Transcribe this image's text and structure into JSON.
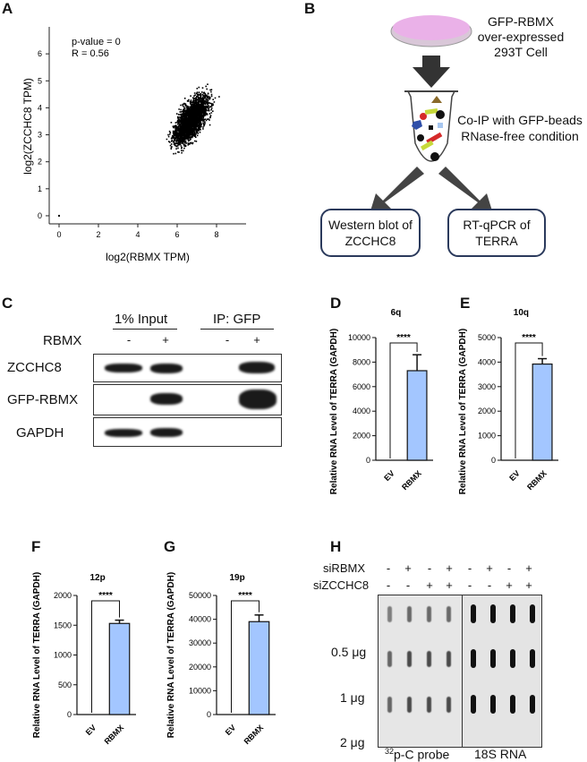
{
  "panel_labels": {
    "a": "A",
    "b": "B",
    "c": "C",
    "d": "D",
    "e": "E",
    "f": "F",
    "g": "G",
    "h": "H"
  },
  "panelA": {
    "stats": [
      "p-value = 0",
      "R = 0.56"
    ],
    "xlabel": "log2(RBMX TPM)",
    "ylabel": "log2(ZCCHC8 TPM)",
    "xticks": [
      "0",
      "2",
      "4",
      "6",
      "8"
    ],
    "yticks": [
      "0",
      "1",
      "2",
      "3",
      "4",
      "5",
      "6"
    ]
  },
  "panelB": {
    "cell_text": "GFP-RBMX\nover-expressed\n293T Cell",
    "coip_text": "Co-IP with GFP-beads\nRNase-free condition",
    "box_left": "Western blot of\nZCCHC8",
    "box_right": "RT-qPCR of\nTERRA",
    "dish_color": "#eab1e8"
  },
  "panelC": {
    "group1": "1% Input",
    "group2": "IP: GFP",
    "treatment_label": "RBMX",
    "signs": [
      "-",
      "+",
      "-",
      "+"
    ],
    "rows": [
      "ZCCHC8",
      "GFP-RBMX",
      "GAPDH"
    ]
  },
  "bar_color": "#a3c6ff",
  "chart_data": [
    {
      "id": "D",
      "type": "bar",
      "title": "6q",
      "ylabel": "Relative RNA Level of TERRA (GAPDH)",
      "categories": [
        "EV",
        "RBMX"
      ],
      "values": [
        0,
        7300
      ],
      "errors": [
        0,
        1300
      ],
      "ylim": [
        0,
        10000
      ],
      "yticks": [
        "0",
        "2000",
        "4000",
        "6000",
        "8000",
        "10000"
      ],
      "significance": "****"
    },
    {
      "id": "E",
      "type": "bar",
      "title": "10q",
      "ylabel": "Relative RNA Level of TERRA (GAPDH)",
      "categories": [
        "EV",
        "RBMX"
      ],
      "values": [
        0,
        3920
      ],
      "errors": [
        0,
        220
      ],
      "ylim": [
        0,
        5000
      ],
      "yticks": [
        "0",
        "1000",
        "2000",
        "3000",
        "4000",
        "5000"
      ],
      "significance": "****"
    },
    {
      "id": "F",
      "type": "bar",
      "title": "12p",
      "ylabel": "Relative RNA Level of TERRA (GAPDH)",
      "categories": [
        "EV",
        "RBMX"
      ],
      "values": [
        0,
        1530
      ],
      "errors": [
        0,
        55
      ],
      "ylim": [
        0,
        2000
      ],
      "yticks": [
        "0",
        "500",
        "1000",
        "1500",
        "2000"
      ],
      "significance": "****"
    },
    {
      "id": "G",
      "type": "bar",
      "title": "19p",
      "ylabel": "Relative RNA Level of TERRA (GAPDH)",
      "categories": [
        "EV",
        "RBMX"
      ],
      "values": [
        0,
        39000
      ],
      "errors": [
        0,
        2800
      ],
      "ylim": [
        0,
        50000
      ],
      "yticks": [
        "0",
        "10000",
        "20000",
        "30000",
        "40000",
        "50000"
      ],
      "significance": "****"
    },
    {
      "id": "A",
      "type": "scatter",
      "title": "",
      "xlabel": "log2(RBMX TPM)",
      "ylabel": "log2(ZCCHC8 TPM)",
      "xlim": [
        -0.5,
        9.5
      ],
      "ylim": [
        -0.3,
        7
      ],
      "center": [
        6.7,
        3.6
      ],
      "annotation": [
        "p-value = 0",
        "R = 0.56"
      ]
    }
  ],
  "panelH": {
    "rows": [
      {
        "label": "siRBMX",
        "signs": [
          "-",
          "+",
          "-",
          "+"
        ]
      },
      {
        "label": "siZCCHC8",
        "signs": [
          "-",
          "-",
          "+",
          "+"
        ]
      }
    ],
    "amounts": [
      "0.5 μg",
      "1 μg",
      "2 μg"
    ],
    "probe_sup": "32",
    "probe_text": "p-C probe",
    "rna_text": "18S RNA"
  }
}
